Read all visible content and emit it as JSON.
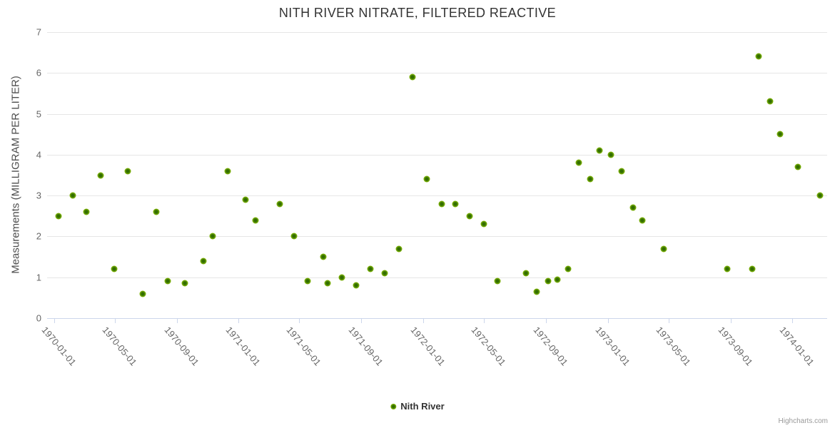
{
  "chart_data": {
    "type": "scatter",
    "title": "NITH RIVER NITRATE, FILTERED REACTIVE",
    "xlabel": "",
    "ylabel": "Measurements (MILLIGRAM PER LITER)",
    "ylim": [
      0,
      7
    ],
    "y_ticks": [
      0,
      1,
      2,
      3,
      4,
      5,
      6,
      7
    ],
    "x_ticks": [
      "1970-01-01",
      "1970-05-01",
      "1970-09-01",
      "1971-01-01",
      "1971-05-01",
      "1971-09-01",
      "1972-01-01",
      "1972-05-01",
      "1972-09-01",
      "1973-01-01",
      "1973-05-01",
      "1973-09-01",
      "1974-01-01"
    ],
    "grid": "horizontal",
    "legend_position": "bottom-center",
    "series": [
      {
        "name": "Nith River",
        "color": "#7eb307",
        "marker_center_color": "#336e00",
        "data": [
          [
            "1970-01-09",
            2.5
          ],
          [
            "1970-02-07",
            3.0
          ],
          [
            "1970-03-05",
            2.6
          ],
          [
            "1970-04-03",
            3.5
          ],
          [
            "1970-04-29",
            1.2
          ],
          [
            "1970-05-27",
            3.6
          ],
          [
            "1970-06-25",
            0.6
          ],
          [
            "1970-07-22",
            2.6
          ],
          [
            "1970-08-14",
            0.9
          ],
          [
            "1970-09-17",
            0.85
          ],
          [
            "1970-10-23",
            1.4
          ],
          [
            "1970-11-11",
            2.0
          ],
          [
            "1970-12-10",
            3.6
          ],
          [
            "1971-01-14",
            2.9
          ],
          [
            "1971-02-04",
            2.4
          ],
          [
            "1971-03-23",
            2.8
          ],
          [
            "1971-04-21",
            2.0
          ],
          [
            "1971-05-18",
            0.9
          ],
          [
            "1971-06-18",
            1.5
          ],
          [
            "1971-06-26",
            0.85
          ],
          [
            "1971-07-24",
            1.0
          ],
          [
            "1971-08-21",
            0.8
          ],
          [
            "1971-09-19",
            1.2
          ],
          [
            "1971-10-17",
            1.1
          ],
          [
            "1971-11-15",
            1.7
          ],
          [
            "1971-12-11",
            5.9
          ],
          [
            "1972-01-09",
            3.4
          ],
          [
            "1972-02-07",
            2.8
          ],
          [
            "1972-03-05",
            2.8
          ],
          [
            "1972-04-02",
            2.5
          ],
          [
            "1972-04-30",
            2.3
          ],
          [
            "1972-05-27",
            0.9
          ],
          [
            "1972-07-23",
            1.1
          ],
          [
            "1972-08-13",
            0.65
          ],
          [
            "1972-09-05",
            0.9
          ],
          [
            "1972-09-23",
            0.95
          ],
          [
            "1972-10-14",
            1.2
          ],
          [
            "1972-11-05",
            3.8
          ],
          [
            "1972-11-27",
            3.4
          ],
          [
            "1972-12-16",
            4.1
          ],
          [
            "1973-01-07",
            4.0
          ],
          [
            "1973-01-29",
            3.6
          ],
          [
            "1973-02-20",
            2.7
          ],
          [
            "1973-03-10",
            2.4
          ],
          [
            "1973-04-22",
            1.7
          ],
          [
            "1973-08-25",
            1.2
          ],
          [
            "1973-10-14",
            1.2
          ],
          [
            "1973-10-27",
            6.4
          ],
          [
            "1973-11-18",
            5.3
          ],
          [
            "1973-12-08",
            4.5
          ],
          [
            "1974-01-13",
            3.7
          ],
          [
            "1974-02-25",
            3.0
          ]
        ]
      }
    ]
  },
  "credits": {
    "label": "Highcharts.com"
  },
  "colors": {
    "accent": "#7eb307",
    "marker_center": "#336e00",
    "grid": "#e6e6e6",
    "axis": "#ccd6eb",
    "title_text": "#333333",
    "label_text": "#666666"
  }
}
